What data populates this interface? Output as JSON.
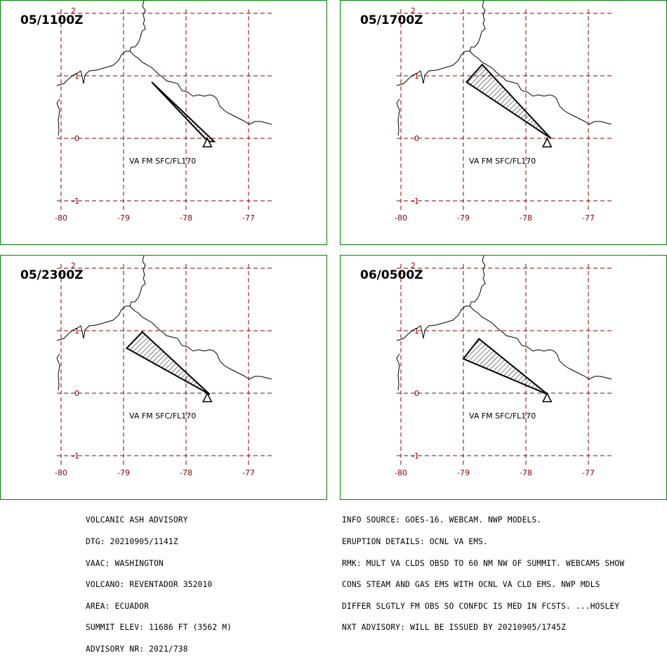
{
  "colors": {
    "frame": "#008000",
    "grid": "#8b0000",
    "ash": "#000000"
  },
  "axis_labels": {
    "lon": [
      "-80",
      "-79",
      "-78",
      "-77"
    ],
    "lat": [
      "2",
      "1",
      "0",
      "-1"
    ]
  },
  "panels": [
    {
      "title": "05/1100Z",
      "va_label": "VA FM SFC/FL170",
      "ash_polygon": [
        [
          -78.55,
          0.9
        ],
        [
          -77.65,
          -0.05
        ],
        [
          -77.55,
          -0.05
        ]
      ]
    },
    {
      "title": "05/1700Z",
      "va_label": "VA FM SFC/FL170",
      "ash_polygon": [
        [
          -78.95,
          0.9
        ],
        [
          -78.7,
          1.18
        ],
        [
          -77.6,
          0.0
        ]
      ]
    },
    {
      "title": "05/2300Z",
      "va_label": "VA FM SFC/FL170",
      "ash_polygon": [
        [
          -78.95,
          0.72
        ],
        [
          -78.7,
          0.98
        ],
        [
          -77.62,
          -0.02
        ]
      ]
    },
    {
      "title": "06/0500Z",
      "va_label": "VA FM SFC/FL170",
      "ash_polygon": [
        [
          -79.0,
          0.55
        ],
        [
          -78.75,
          0.87
        ],
        [
          -77.65,
          -0.02
        ]
      ]
    }
  ],
  "advisory_left": [
    "VOLCANIC ASH ADVISORY",
    "DTG: 20210905/1141Z",
    "VAAC: WASHINGTON",
    "VOLCANO: REVENTADOR 352010",
    "AREA: ECUADOR",
    "SUMMIT ELEV: 11686 FT (3562 M)",
    "ADVISORY NR: 2021/738"
  ],
  "advisory_right": [
    "INFO SOURCE: GOES-16. WEBCAM. NWP MODELS.",
    "ERUPTION DETAILS: OCNL VA EMS.",
    "RMK: MULT VA CLDS OBSD TO 60 NM NW OF SUMMIT. WEBCAMS SHOW",
    "CONS STEAM AND GAS EMS WITH OCNL VA CLD EMS. NWP MDLS",
    "DIFFER SLGTLY FM OBS SO CONFDC IS MED IN FCSTS. ...HOSLEY",
    "NXT ADVISORY: WILL BE ISSUED BY 20210905/1745Z"
  ]
}
